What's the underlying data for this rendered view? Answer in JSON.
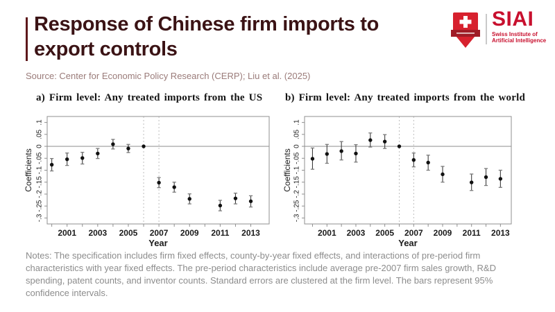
{
  "header": {
    "title_line1": "Response of Chinese firm imports to",
    "title_line2": "export controls",
    "source": "Source: Center for Economic Policy Research (CERP); Liu et al. (2025)"
  },
  "logo": {
    "wordmark": "SIAI",
    "subtitle_line1": "Swiss Institute of",
    "subtitle_line2": "Artificial Intelligence",
    "brand_color": "#c8102e",
    "shield_color": "#d7212e",
    "ribbon_color": "#9f1c26"
  },
  "colors": {
    "title": "#3b1315",
    "accent_bar": "#5e181b",
    "source_text": "#9a7b79",
    "notes_text": "#8c8c8c",
    "frame": "#8f8f8f",
    "zero_line": "#9a9a9a",
    "dashed_line": "#bdbdbd",
    "point": "#111111",
    "whisker": "#3c3c3c",
    "cap": "#7a7a7a"
  },
  "notes": "Notes: The specification includes firm fixed effects, county-by-year fixed effects, and interactions of pre-period firm characteristics with year fixed effects. The pre-period characteristics include average pre-2007 firm sales growth, R&D spending, patent counts, and inventor counts. Standard errors are clustered at the firm level. The bars represent 95% confidence intervals.",
  "chart_data": [
    {
      "type": "scatter",
      "title": "a) Firm level: Any treated imports from the US",
      "xlabel": "Year",
      "ylabel": "Coefficients",
      "xlim": [
        1999.7,
        2014.2
      ],
      "ylim": [
        -0.325,
        0.125
      ],
      "x_year_range": [
        2000,
        2013
      ],
      "x_tick_labels": [
        2001,
        2003,
        2005,
        2007,
        2009,
        2011,
        2013
      ],
      "y_ticks": [
        0.1,
        0.05,
        0,
        -0.05,
        -0.1,
        -0.15,
        -0.2,
        -0.25,
        -0.3
      ],
      "y_tick_labels": [
        ".1",
        ".05",
        "0",
        "-.05",
        "-.1",
        "-.15",
        "-.2",
        "-.25",
        "-.3"
      ],
      "dashed_vlines": [
        2006,
        2007
      ],
      "zero_line": true,
      "reference_year": 2006,
      "points": [
        {
          "year": 2000,
          "coef": -0.077,
          "ci_low": -0.103,
          "ci_high": -0.051
        },
        {
          "year": 2001,
          "coef": -0.054,
          "ci_low": -0.08,
          "ci_high": -0.028
        },
        {
          "year": 2002,
          "coef": -0.049,
          "ci_low": -0.074,
          "ci_high": -0.025
        },
        {
          "year": 2003,
          "coef": -0.03,
          "ci_low": -0.051,
          "ci_high": -0.009
        },
        {
          "year": 2004,
          "coef": 0.009,
          "ci_low": -0.011,
          "ci_high": 0.029
        },
        {
          "year": 2005,
          "coef": -0.009,
          "ci_low": -0.026,
          "ci_high": 0.008
        },
        {
          "year": 2006,
          "coef": 0,
          "ci_low": null,
          "ci_high": null
        },
        {
          "year": 2007,
          "coef": -0.152,
          "ci_low": -0.173,
          "ci_high": -0.131
        },
        {
          "year": 2008,
          "coef": -0.171,
          "ci_low": -0.192,
          "ci_high": -0.15
        },
        {
          "year": 2009,
          "coef": -0.22,
          "ci_low": -0.241,
          "ci_high": -0.199
        },
        {
          "year": 2011,
          "coef": -0.248,
          "ci_low": -0.27,
          "ci_high": -0.226
        },
        {
          "year": 2012,
          "coef": -0.218,
          "ci_low": -0.241,
          "ci_high": -0.196
        },
        {
          "year": 2013,
          "coef": -0.23,
          "ci_low": -0.254,
          "ci_high": -0.207
        }
      ]
    },
    {
      "type": "scatter",
      "title": "b) Firm level: Any treated imports from the world",
      "xlabel": "Year",
      "ylabel": "Coefficients",
      "xlim": [
        1999.45,
        2013.75
      ],
      "ylim": [
        -0.325,
        0.125
      ],
      "x_year_range": [
        2000,
        2013
      ],
      "x_tick_labels": [
        2001,
        2003,
        2005,
        2007,
        2009,
        2011,
        2013
      ],
      "y_ticks": [
        0.1,
        0.05,
        0,
        -0.05,
        -0.1,
        -0.15,
        -0.2,
        -0.25,
        -0.3
      ],
      "y_tick_labels": [
        ".1",
        ".05",
        "0",
        "-.05",
        "-.1",
        "-.15",
        "-.2",
        "-.25",
        "-.3"
      ],
      "dashed_vlines": [
        2006,
        2007
      ],
      "zero_line": true,
      "reference_year": 2006,
      "points": [
        {
          "year": 2000,
          "coef": -0.052,
          "ci_low": -0.096,
          "ci_high": -0.007
        },
        {
          "year": 2001,
          "coef": -0.032,
          "ci_low": -0.071,
          "ci_high": 0.008
        },
        {
          "year": 2002,
          "coef": -0.02,
          "ci_low": -0.057,
          "ci_high": 0.02
        },
        {
          "year": 2003,
          "coef": -0.03,
          "ci_low": -0.066,
          "ci_high": 0.007
        },
        {
          "year": 2004,
          "coef": 0.026,
          "ci_low": -0.003,
          "ci_high": 0.056
        },
        {
          "year": 2005,
          "coef": 0.02,
          "ci_low": -0.009,
          "ci_high": 0.049
        },
        {
          "year": 2006,
          "coef": 0,
          "ci_low": null,
          "ci_high": null
        },
        {
          "year": 2007,
          "coef": -0.057,
          "ci_low": -0.086,
          "ci_high": -0.028
        },
        {
          "year": 2008,
          "coef": -0.068,
          "ci_low": -0.1,
          "ci_high": -0.037
        },
        {
          "year": 2009,
          "coef": -0.117,
          "ci_low": -0.15,
          "ci_high": -0.084
        },
        {
          "year": 2011,
          "coef": -0.151,
          "ci_low": -0.185,
          "ci_high": -0.116
        },
        {
          "year": 2012,
          "coef": -0.129,
          "ci_low": -0.164,
          "ci_high": -0.093
        },
        {
          "year": 2013,
          "coef": -0.136,
          "ci_low": -0.172,
          "ci_high": -0.1
        }
      ]
    }
  ]
}
